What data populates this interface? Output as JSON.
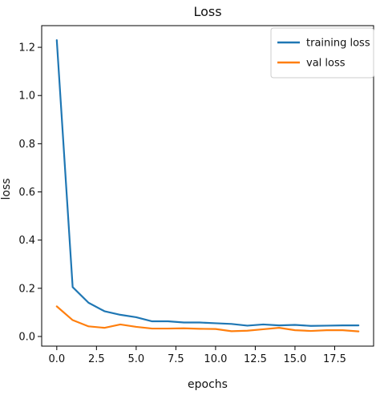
{
  "chart_data": {
    "type": "line",
    "title": "Loss",
    "xlabel": "epochs",
    "ylabel": "loss",
    "x": [
      0,
      1,
      2,
      3,
      4,
      5,
      6,
      7,
      8,
      9,
      10,
      11,
      12,
      13,
      14,
      15,
      16,
      17,
      18,
      19
    ],
    "series": [
      {
        "name": "training loss",
        "color": "#1f77b4",
        "values": [
          1.23,
          0.205,
          0.14,
          0.105,
          0.09,
          0.08,
          0.063,
          0.063,
          0.058,
          0.058,
          0.055,
          0.052,
          0.045,
          0.05,
          0.046,
          0.048,
          0.044,
          0.045,
          0.046,
          0.046
        ]
      },
      {
        "name": "val loss",
        "color": "#ff7f0e",
        "values": [
          0.125,
          0.068,
          0.042,
          0.036,
          0.05,
          0.04,
          0.033,
          0.033,
          0.034,
          0.032,
          0.031,
          0.022,
          0.024,
          0.03,
          0.036,
          0.026,
          0.023,
          0.026,
          0.026,
          0.021
        ]
      }
    ],
    "xlim": [
      -0.95,
      19.95
    ],
    "ylim": [
      -0.04,
      1.29
    ],
    "xticks": [
      "0.0",
      "2.5",
      "5.0",
      "7.5",
      "10.0",
      "12.5",
      "15.0",
      "17.5"
    ],
    "yticks": [
      "0.0",
      "0.2",
      "0.4",
      "0.6",
      "0.8",
      "1.0",
      "1.2"
    ],
    "grid": false,
    "legend_position": "upper right"
  }
}
